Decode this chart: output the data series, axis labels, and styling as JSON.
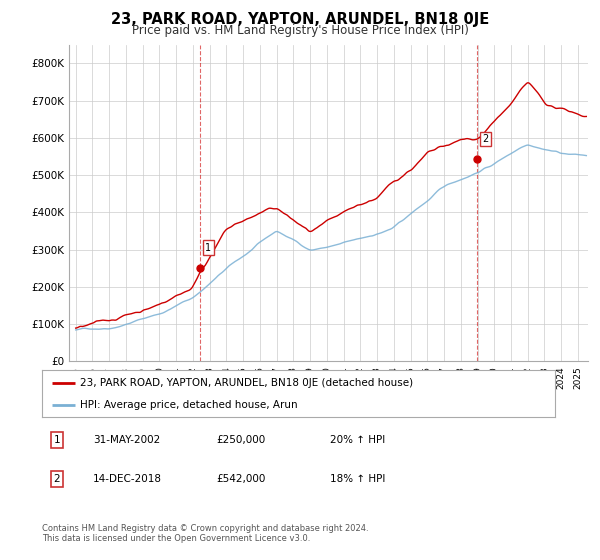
{
  "title": "23, PARK ROAD, YAPTON, ARUNDEL, BN18 0JE",
  "subtitle": "Price paid vs. HM Land Registry's House Price Index (HPI)",
  "ylim": [
    0,
    850000
  ],
  "yticks": [
    0,
    100000,
    200000,
    300000,
    400000,
    500000,
    600000,
    700000,
    800000
  ],
  "ytick_labels": [
    "£0",
    "£100K",
    "£200K",
    "£300K",
    "£400K",
    "£500K",
    "£600K",
    "£700K",
    "£800K"
  ],
  "sale1_date": 2002.42,
  "sale1_price": 250000,
  "sale1_label": "1",
  "sale2_date": 2018.96,
  "sale2_price": 542000,
  "sale2_label": "2",
  "red_color": "#cc0000",
  "blue_color": "#7ab0d4",
  "background_color": "#ffffff",
  "grid_color": "#cccccc",
  "title_fontsize": 10.5,
  "subtitle_fontsize": 8.5,
  "footnote1": "Contains HM Land Registry data © Crown copyright and database right 2024.",
  "footnote2": "This data is licensed under the Open Government Licence v3.0.",
  "legend_line1": "23, PARK ROAD, YAPTON, ARUNDEL, BN18 0JE (detached house)",
  "legend_line2": "HPI: Average price, detached house, Arun",
  "ann1_date": "31-MAY-2002",
  "ann1_price": "£250,000",
  "ann1_hpi": "20% ↑ HPI",
  "ann2_date": "14-DEC-2018",
  "ann2_price": "£542,000",
  "ann2_hpi": "18% ↑ HPI"
}
